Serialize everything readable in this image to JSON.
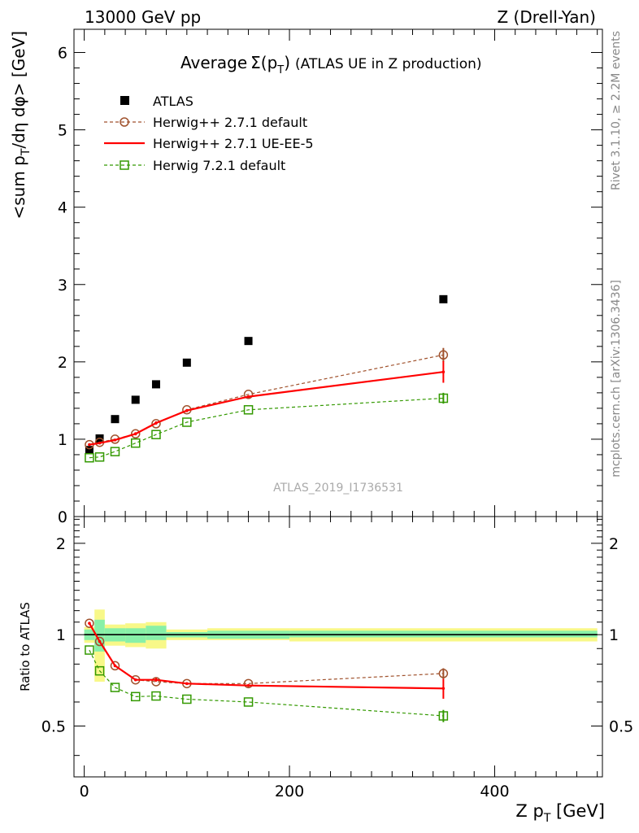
{
  "header": {
    "left": "13000 GeV pp",
    "right": "Z (Drell-Yan)"
  },
  "side": {
    "rivet": "Rivet 3.1.10, ≥ 2.2M events",
    "mcplots": "mcplots.cern.ch [arXiv:1306.3436]"
  },
  "chart_data": [
    {
      "type": "scatter",
      "title_main": "Average",
      "title_sigma": "Σ(p",
      "title_sub": "T",
      "title_close": ")",
      "title_rest": "(ATLAS UE in Z production)",
      "ylabel_main": "<sum p",
      "ylabel_sub": "T",
      "ylabel_rest": "/dη dφ> [GeV]",
      "watermark": "ATLAS_2019_I1736531",
      "xlim": [
        -10,
        505
      ],
      "ylim": [
        0,
        6.3
      ],
      "yticks": [
        0,
        1,
        2,
        3,
        4,
        5,
        6
      ],
      "ytick_labels": [
        "0",
        "1",
        "2",
        "3",
        "4",
        "5",
        "6"
      ],
      "x": [
        5,
        15,
        30,
        50,
        70,
        100,
        160,
        350
      ],
      "series": [
        {
          "name": "ATLAS",
          "color": "#000000",
          "marker": "filled-square",
          "values": [
            0.86,
            1.01,
            1.26,
            1.51,
            1.71,
            1.99,
            2.27,
            2.81
          ]
        },
        {
          "name": "Herwig++ 2.7.1 default",
          "color": "#a0522d",
          "marker": "open-circle",
          "style": "dashed",
          "values": [
            0.93,
            0.96,
            1.0,
            1.07,
            1.2,
            1.38,
            1.58,
            2.09
          ],
          "errors": [
            0,
            0,
            0,
            0,
            0,
            0,
            0,
            0.09
          ]
        },
        {
          "name": "Herwig++ 2.7.1 UE-EE-5",
          "color": "#ff0000",
          "marker": "none",
          "style": "solid",
          "values": [
            0.93,
            0.95,
            0.99,
            1.07,
            1.21,
            1.37,
            1.55,
            1.87
          ],
          "errors": [
            0,
            0,
            0,
            0.02,
            0.02,
            0.02,
            0,
            0.14
          ]
        },
        {
          "name": "Herwig 7.2.1 default",
          "color": "#339900",
          "marker": "open-square",
          "style": "dashed",
          "values": [
            0.76,
            0.77,
            0.84,
            0.95,
            1.06,
            1.22,
            1.38,
            1.53
          ],
          "errors": [
            0,
            0,
            0,
            0,
            0,
            0,
            0,
            0.07
          ]
        }
      ],
      "legend": "top-left"
    },
    {
      "type": "scatter",
      "ylabel": "Ratio to ATLAS",
      "xlabel_main": "Z p",
      "xlabel_sub": "T",
      "xlabel_rest": " [GeV]",
      "xlim": [
        -10,
        505
      ],
      "xticks": [
        0,
        200,
        400
      ],
      "xtick_labels": [
        "0",
        "200",
        "400"
      ],
      "ylim": [
        0.34,
        2.45
      ],
      "yticks": [
        0.5,
        1,
        2
      ],
      "ytick_labels": [
        "0.5",
        "1",
        "2"
      ],
      "x": [
        5,
        15,
        30,
        50,
        70,
        100,
        160,
        350
      ],
      "bands": [
        {
          "x": [
            0,
            10
          ],
          "inner": [
            0.96,
            1.04
          ],
          "outer": [
            0.94,
            1.06
          ]
        },
        {
          "x": [
            10,
            20
          ],
          "inner": [
            0.88,
            1.12
          ],
          "outer": [
            0.7,
            1.21
          ]
        },
        {
          "x": [
            20,
            40
          ],
          "inner": [
            0.95,
            1.05
          ],
          "outer": [
            0.92,
            1.08
          ]
        },
        {
          "x": [
            40,
            60
          ],
          "inner": [
            0.94,
            1.05
          ],
          "outer": [
            0.91,
            1.09
          ]
        },
        {
          "x": [
            60,
            80
          ],
          "inner": [
            0.96,
            1.07
          ],
          "outer": [
            0.9,
            1.1
          ]
        },
        {
          "x": [
            80,
            120
          ],
          "inner": [
            0.98,
            1.02
          ],
          "outer": [
            0.96,
            1.04
          ]
        },
        {
          "x": [
            120,
            200
          ],
          "inner": [
            0.97,
            1.03
          ],
          "outer": [
            0.96,
            1.05
          ]
        },
        {
          "x": [
            200,
            500
          ],
          "inner": [
            0.98,
            1.03
          ],
          "outer": [
            0.95,
            1.05
          ]
        }
      ],
      "band_colors": {
        "inner": "#88f0a8",
        "outer": "#f8f888"
      },
      "series": [
        {
          "name": "Herwig++ 2.7.1 default",
          "color": "#a0522d",
          "marker": "open-circle",
          "style": "dashed",
          "values": [
            1.09,
            0.95,
            0.79,
            0.71,
            0.7,
            0.69,
            0.69,
            0.745
          ],
          "errors": [
            0,
            0,
            0,
            0,
            0,
            0,
            0,
            0.03
          ]
        },
        {
          "name": "Herwig++ 2.7.1 UE-EE-5",
          "color": "#ff0000",
          "marker": "none",
          "style": "solid",
          "values": [
            1.09,
            0.95,
            0.79,
            0.71,
            0.71,
            0.69,
            0.68,
            0.665
          ],
          "errors": [
            0,
            0,
            0,
            0,
            0.01,
            0,
            0,
            0.05
          ]
        },
        {
          "name": "Herwig 7.2.1 default",
          "color": "#339900",
          "marker": "open-square",
          "style": "dashed",
          "values": [
            0.89,
            0.76,
            0.67,
            0.625,
            0.628,
            0.613,
            0.6,
            0.54
          ],
          "errors": [
            0,
            0,
            0,
            0,
            0,
            0,
            0,
            0.025
          ]
        }
      ]
    }
  ]
}
